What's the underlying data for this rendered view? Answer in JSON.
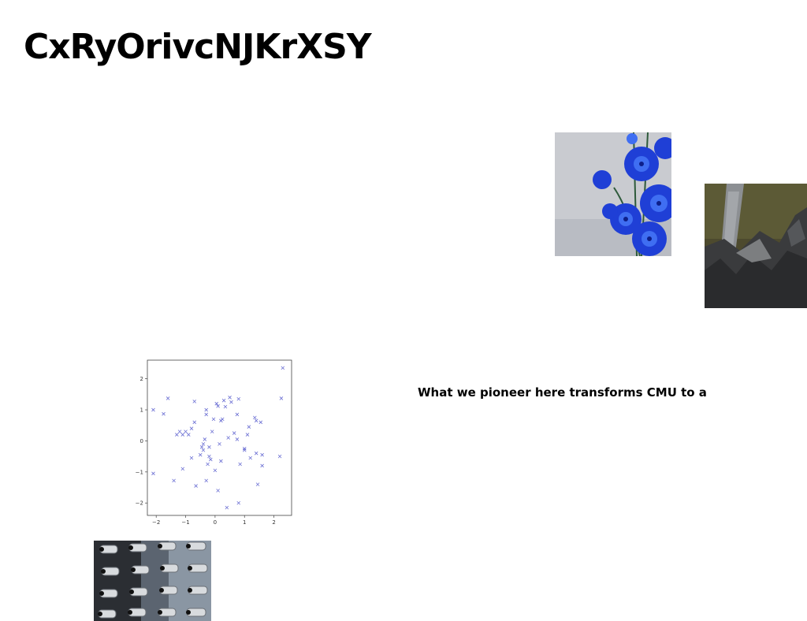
{
  "page": {
    "title": "CxRyOrivcNJKrXSY",
    "caption": "What we pioneer here transforms CMU to a"
  },
  "images": {
    "flowers": "blue-flowers-photo",
    "rocks": "rock-cliff-photo",
    "cameras": "security-cameras-photo"
  },
  "chart_data": {
    "type": "scatter",
    "marker": "x",
    "color": "#3a3fc4",
    "xlim": [
      -2.3,
      2.6
    ],
    "ylim": [
      -2.4,
      2.6
    ],
    "xticks": [
      -2,
      -1,
      0,
      1,
      2
    ],
    "yticks": [
      -2,
      -1,
      0,
      1,
      2
    ],
    "xtick_labels": [
      "−2",
      "−1",
      "0",
      "1",
      "2"
    ],
    "ytick_labels": [
      "−2",
      "−1",
      "0",
      "1",
      "2"
    ],
    "grid": false,
    "points": [
      [
        -2.1,
        1.0
      ],
      [
        -2.1,
        -1.05
      ],
      [
        -1.75,
        0.87
      ],
      [
        -1.6,
        1.37
      ],
      [
        -1.4,
        -1.28
      ],
      [
        -1.3,
        0.2
      ],
      [
        -1.2,
        0.3
      ],
      [
        -1.1,
        -0.9
      ],
      [
        -1.1,
        0.2
      ],
      [
        -1.0,
        0.3
      ],
      [
        -0.9,
        0.2
      ],
      [
        -0.8,
        0.4
      ],
      [
        -0.8,
        -0.55
      ],
      [
        -0.7,
        0.6
      ],
      [
        -0.7,
        1.27
      ],
      [
        -0.65,
        -1.45
      ],
      [
        -0.5,
        -0.45
      ],
      [
        -0.45,
        -0.2
      ],
      [
        -0.4,
        -0.1
      ],
      [
        -0.4,
        -0.3
      ],
      [
        -0.35,
        0.05
      ],
      [
        -0.3,
        1.0
      ],
      [
        -0.3,
        0.85
      ],
      [
        -0.3,
        -1.28
      ],
      [
        -0.25,
        -0.75
      ],
      [
        -0.2,
        -0.2
      ],
      [
        -0.2,
        -0.5
      ],
      [
        -0.15,
        -0.6
      ],
      [
        -0.1,
        0.3
      ],
      [
        -0.05,
        0.7
      ],
      [
        0.0,
        -0.95
      ],
      [
        0.05,
        1.2
      ],
      [
        0.1,
        1.12
      ],
      [
        0.1,
        -1.6
      ],
      [
        0.15,
        -0.1
      ],
      [
        0.2,
        -0.65
      ],
      [
        0.2,
        0.65
      ],
      [
        0.25,
        0.7
      ],
      [
        0.3,
        1.3
      ],
      [
        0.35,
        1.1
      ],
      [
        0.4,
        -2.15
      ],
      [
        0.45,
        0.1
      ],
      [
        0.5,
        1.4
      ],
      [
        0.55,
        1.25
      ],
      [
        0.65,
        0.25
      ],
      [
        0.75,
        0.05
      ],
      [
        0.75,
        0.85
      ],
      [
        0.8,
        1.35
      ],
      [
        0.8,
        -2.0
      ],
      [
        0.85,
        -0.75
      ],
      [
        1.0,
        -0.25
      ],
      [
        1.0,
        -0.3
      ],
      [
        1.1,
        0.2
      ],
      [
        1.15,
        0.45
      ],
      [
        1.2,
        -0.55
      ],
      [
        1.35,
        0.75
      ],
      [
        1.4,
        0.65
      ],
      [
        1.4,
        -0.4
      ],
      [
        1.45,
        -1.4
      ],
      [
        1.55,
        0.6
      ],
      [
        1.6,
        -0.45
      ],
      [
        1.6,
        -0.8
      ],
      [
        2.2,
        -0.5
      ],
      [
        2.25,
        1.37
      ],
      [
        2.3,
        2.35
      ]
    ]
  }
}
